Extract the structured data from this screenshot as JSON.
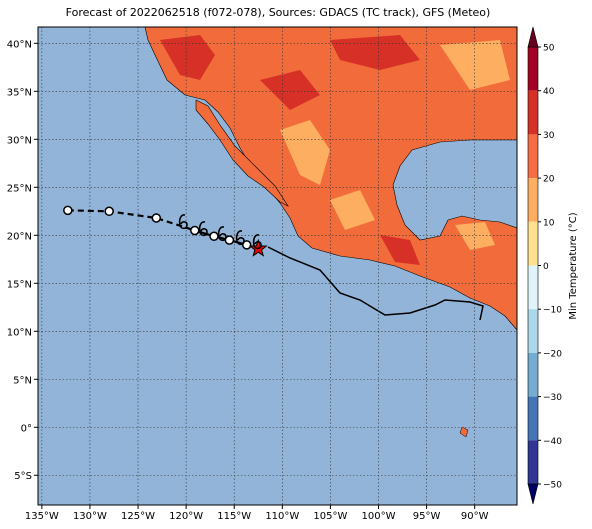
{
  "title": "Forecast of 2022062518 (f072-078), Sources: GDACS (TC track), GFS (Meteo)",
  "map": {
    "lonlim": [
      -135.4,
      -85.6
    ],
    "latlim": [
      41.7,
      -8.1
    ],
    "lon_ticks": [
      {
        "value": -135,
        "label": "135°W"
      },
      {
        "value": -130,
        "label": "130°W"
      },
      {
        "value": -125,
        "label": "125°W"
      },
      {
        "value": -120,
        "label": "120°W"
      },
      {
        "value": -115,
        "label": "115°W"
      },
      {
        "value": -110,
        "label": "110°W"
      },
      {
        "value": -105,
        "label": "105°W"
      },
      {
        "value": -100,
        "label": "100°W"
      },
      {
        "value": -95,
        "label": "95°W"
      },
      {
        "value": -90,
        "label": "90°W"
      }
    ],
    "lat_ticks": [
      {
        "value": 40,
        "label": "40°N"
      },
      {
        "value": 35,
        "label": "35°N"
      },
      {
        "value": 30,
        "label": "30°N"
      },
      {
        "value": 25,
        "label": "25°N"
      },
      {
        "value": 20,
        "label": "20°N"
      },
      {
        "value": 15,
        "label": "15°N"
      },
      {
        "value": 10,
        "label": "10°N"
      },
      {
        "value": 5,
        "label": "5°N"
      },
      {
        "value": 0,
        "label": "0°"
      },
      {
        "value": -5,
        "label": "5°S"
      }
    ],
    "grid": true
  },
  "track": {
    "lon": [
      -132.3,
      -128.0,
      -123.1,
      -119.1,
      -117.1,
      -115.5,
      -113.7,
      -112.5
    ],
    "lat": [
      22.6,
      22.5,
      21.8,
      20.5,
      19.9,
      19.5,
      19.0,
      18.6
    ]
  },
  "colorbar": {
    "label": "Min Temperature (°C)",
    "ticks": [
      50,
      40,
      30,
      20,
      10,
      0,
      {
        "value": -10,
        "label": "−10"
      },
      {
        "value": -20,
        "label": "−20"
      },
      {
        "value": -30,
        "label": "−30"
      },
      {
        "value": -40,
        "label": "−40"
      },
      {
        "value": -50,
        "label": "−50"
      }
    ],
    "colors": [
      "#a50026",
      "#d73027",
      "#f46d43",
      "#fdae61",
      "#fee090",
      "#e0f3f8",
      "#abd9e9",
      "#74add1",
      "#4575b4",
      "#313695"
    ]
  }
}
